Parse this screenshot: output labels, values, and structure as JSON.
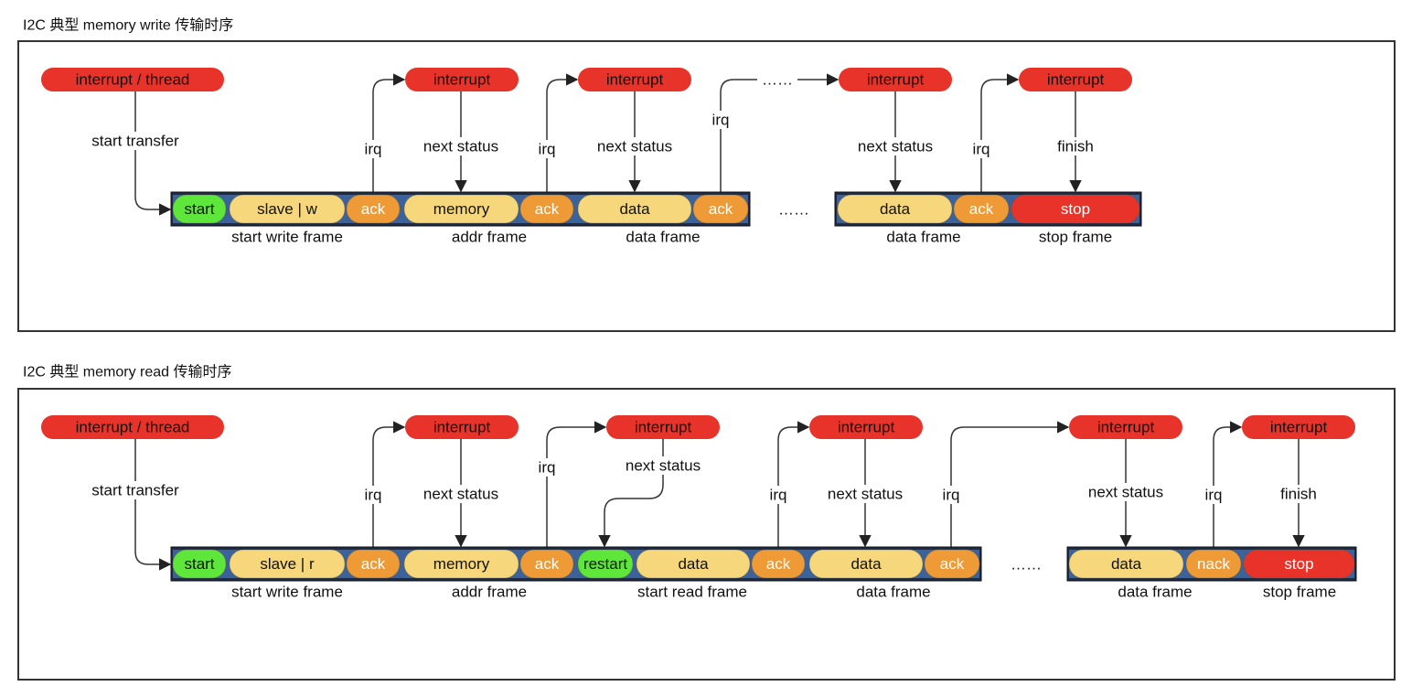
{
  "colors": {
    "interrupt": "#e8332a",
    "start": "#5fe63b",
    "field": "#f6d77b",
    "ack": "#ee9a36",
    "stop": "#e8332a",
    "bar": "#1c2b48",
    "barTint": "#4a7ac0",
    "border": "#333333"
  },
  "sections": [
    {
      "title": "I2C 典型 memory write 传输时序",
      "pills": [
        "interrupt / thread",
        "interrupt",
        "interrupt",
        "interrupt",
        "interrupt"
      ],
      "segments": [
        {
          "label": "start",
          "kind": "start"
        },
        {
          "label": "slave | w",
          "kind": "field"
        },
        {
          "label": "ack",
          "kind": "ack"
        },
        {
          "label": "memory",
          "kind": "field"
        },
        {
          "label": "ack",
          "kind": "ack"
        },
        {
          "label": "data",
          "kind": "field"
        },
        {
          "label": "ack",
          "kind": "ack"
        },
        {
          "label": "data",
          "kind": "field"
        },
        {
          "label": "ack",
          "kind": "ack"
        },
        {
          "label": "stop",
          "kind": "stop"
        }
      ],
      "frames": [
        "start write frame",
        "addr frame",
        "data frame",
        "data frame",
        "stop frame"
      ],
      "edge_labels": [
        "start transfer",
        "irq",
        "next status",
        "irq",
        "next status",
        "irq",
        "next status",
        "irq",
        "finish"
      ],
      "ellipses": [
        "……",
        "……"
      ]
    },
    {
      "title": "I2C 典型 memory read 传输时序",
      "pills": [
        "interrupt / thread",
        "interrupt",
        "interrupt",
        "interrupt",
        "interrupt",
        "interrupt"
      ],
      "segments": [
        {
          "label": "start",
          "kind": "start"
        },
        {
          "label": "slave | r",
          "kind": "field"
        },
        {
          "label": "ack",
          "kind": "ack"
        },
        {
          "label": "memory",
          "kind": "field"
        },
        {
          "label": "ack",
          "kind": "ack"
        },
        {
          "label": "restart",
          "kind": "start"
        },
        {
          "label": "data",
          "kind": "field"
        },
        {
          "label": "ack",
          "kind": "ack"
        },
        {
          "label": "data",
          "kind": "field"
        },
        {
          "label": "ack",
          "kind": "ack"
        },
        {
          "label": "data",
          "kind": "field"
        },
        {
          "label": "nack",
          "kind": "ack"
        },
        {
          "label": "stop",
          "kind": "stop"
        }
      ],
      "frames": [
        "start write frame",
        "addr frame",
        "start read frame",
        "data frame",
        "data frame",
        "stop frame"
      ],
      "edge_labels": [
        "start transfer",
        "irq",
        "next status",
        "irq",
        "next status",
        "irq",
        "next status",
        "irq",
        "next status",
        "irq",
        "finish"
      ],
      "ellipses": [
        "……"
      ]
    }
  ]
}
